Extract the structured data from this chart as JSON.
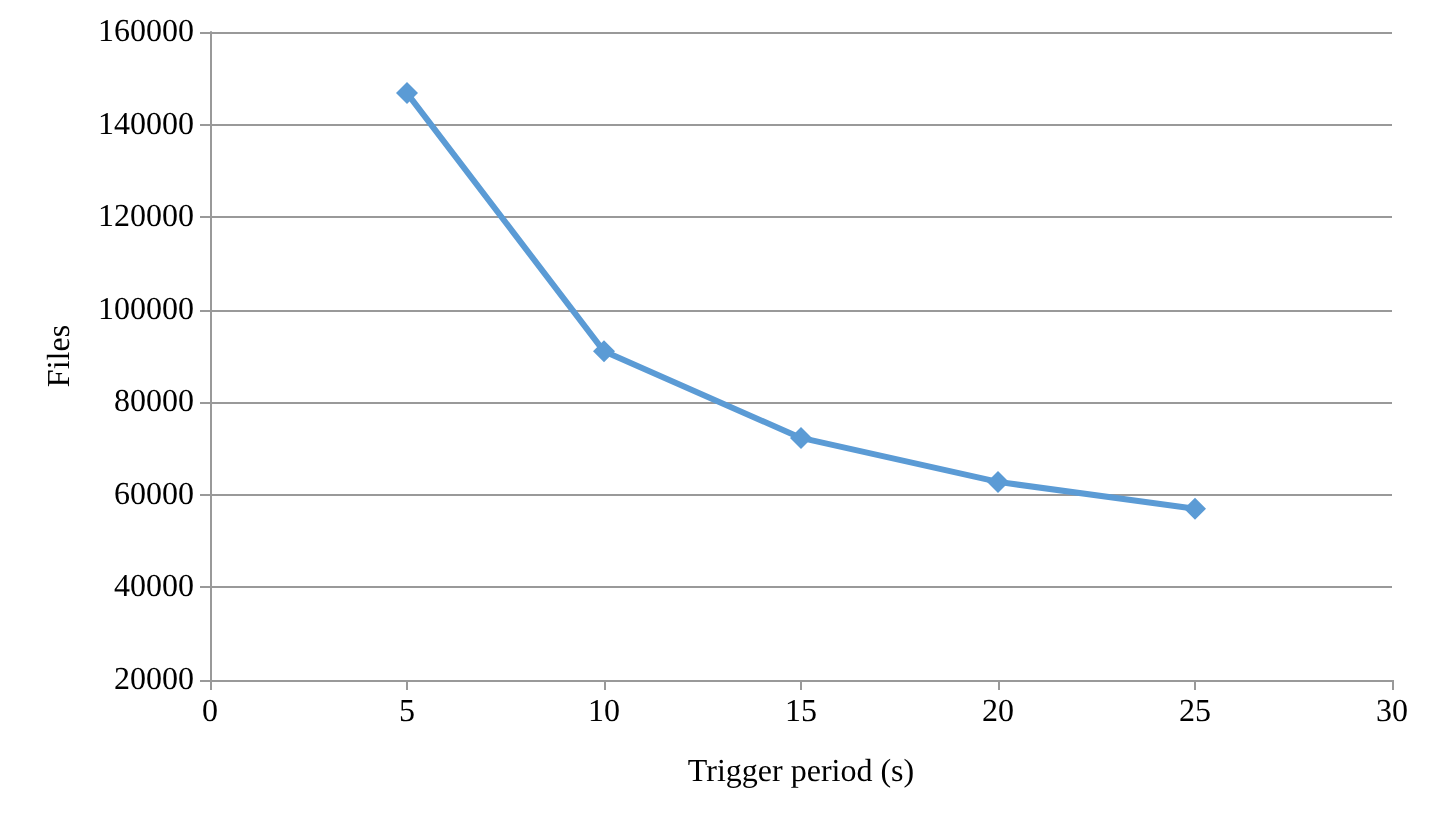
{
  "chart_data": {
    "type": "line",
    "xlabel": "Trigger period (s)",
    "ylabel": "Files",
    "x": [
      5,
      10,
      15,
      20,
      25
    ],
    "series": [
      {
        "color": "#5b9bd5",
        "values": [
          146800,
          91000,
          72300,
          62800,
          57000
        ]
      }
    ],
    "xlim": [
      0,
      30
    ],
    "xticks": [
      0,
      5,
      10,
      15,
      20,
      25,
      30
    ],
    "ylim": [
      20000,
      160000
    ],
    "yticks": [
      20000,
      40000,
      60000,
      80000,
      100000,
      120000,
      140000,
      160000
    ],
    "grid": "y",
    "marker": "diamond",
    "line_style": "solid"
  }
}
